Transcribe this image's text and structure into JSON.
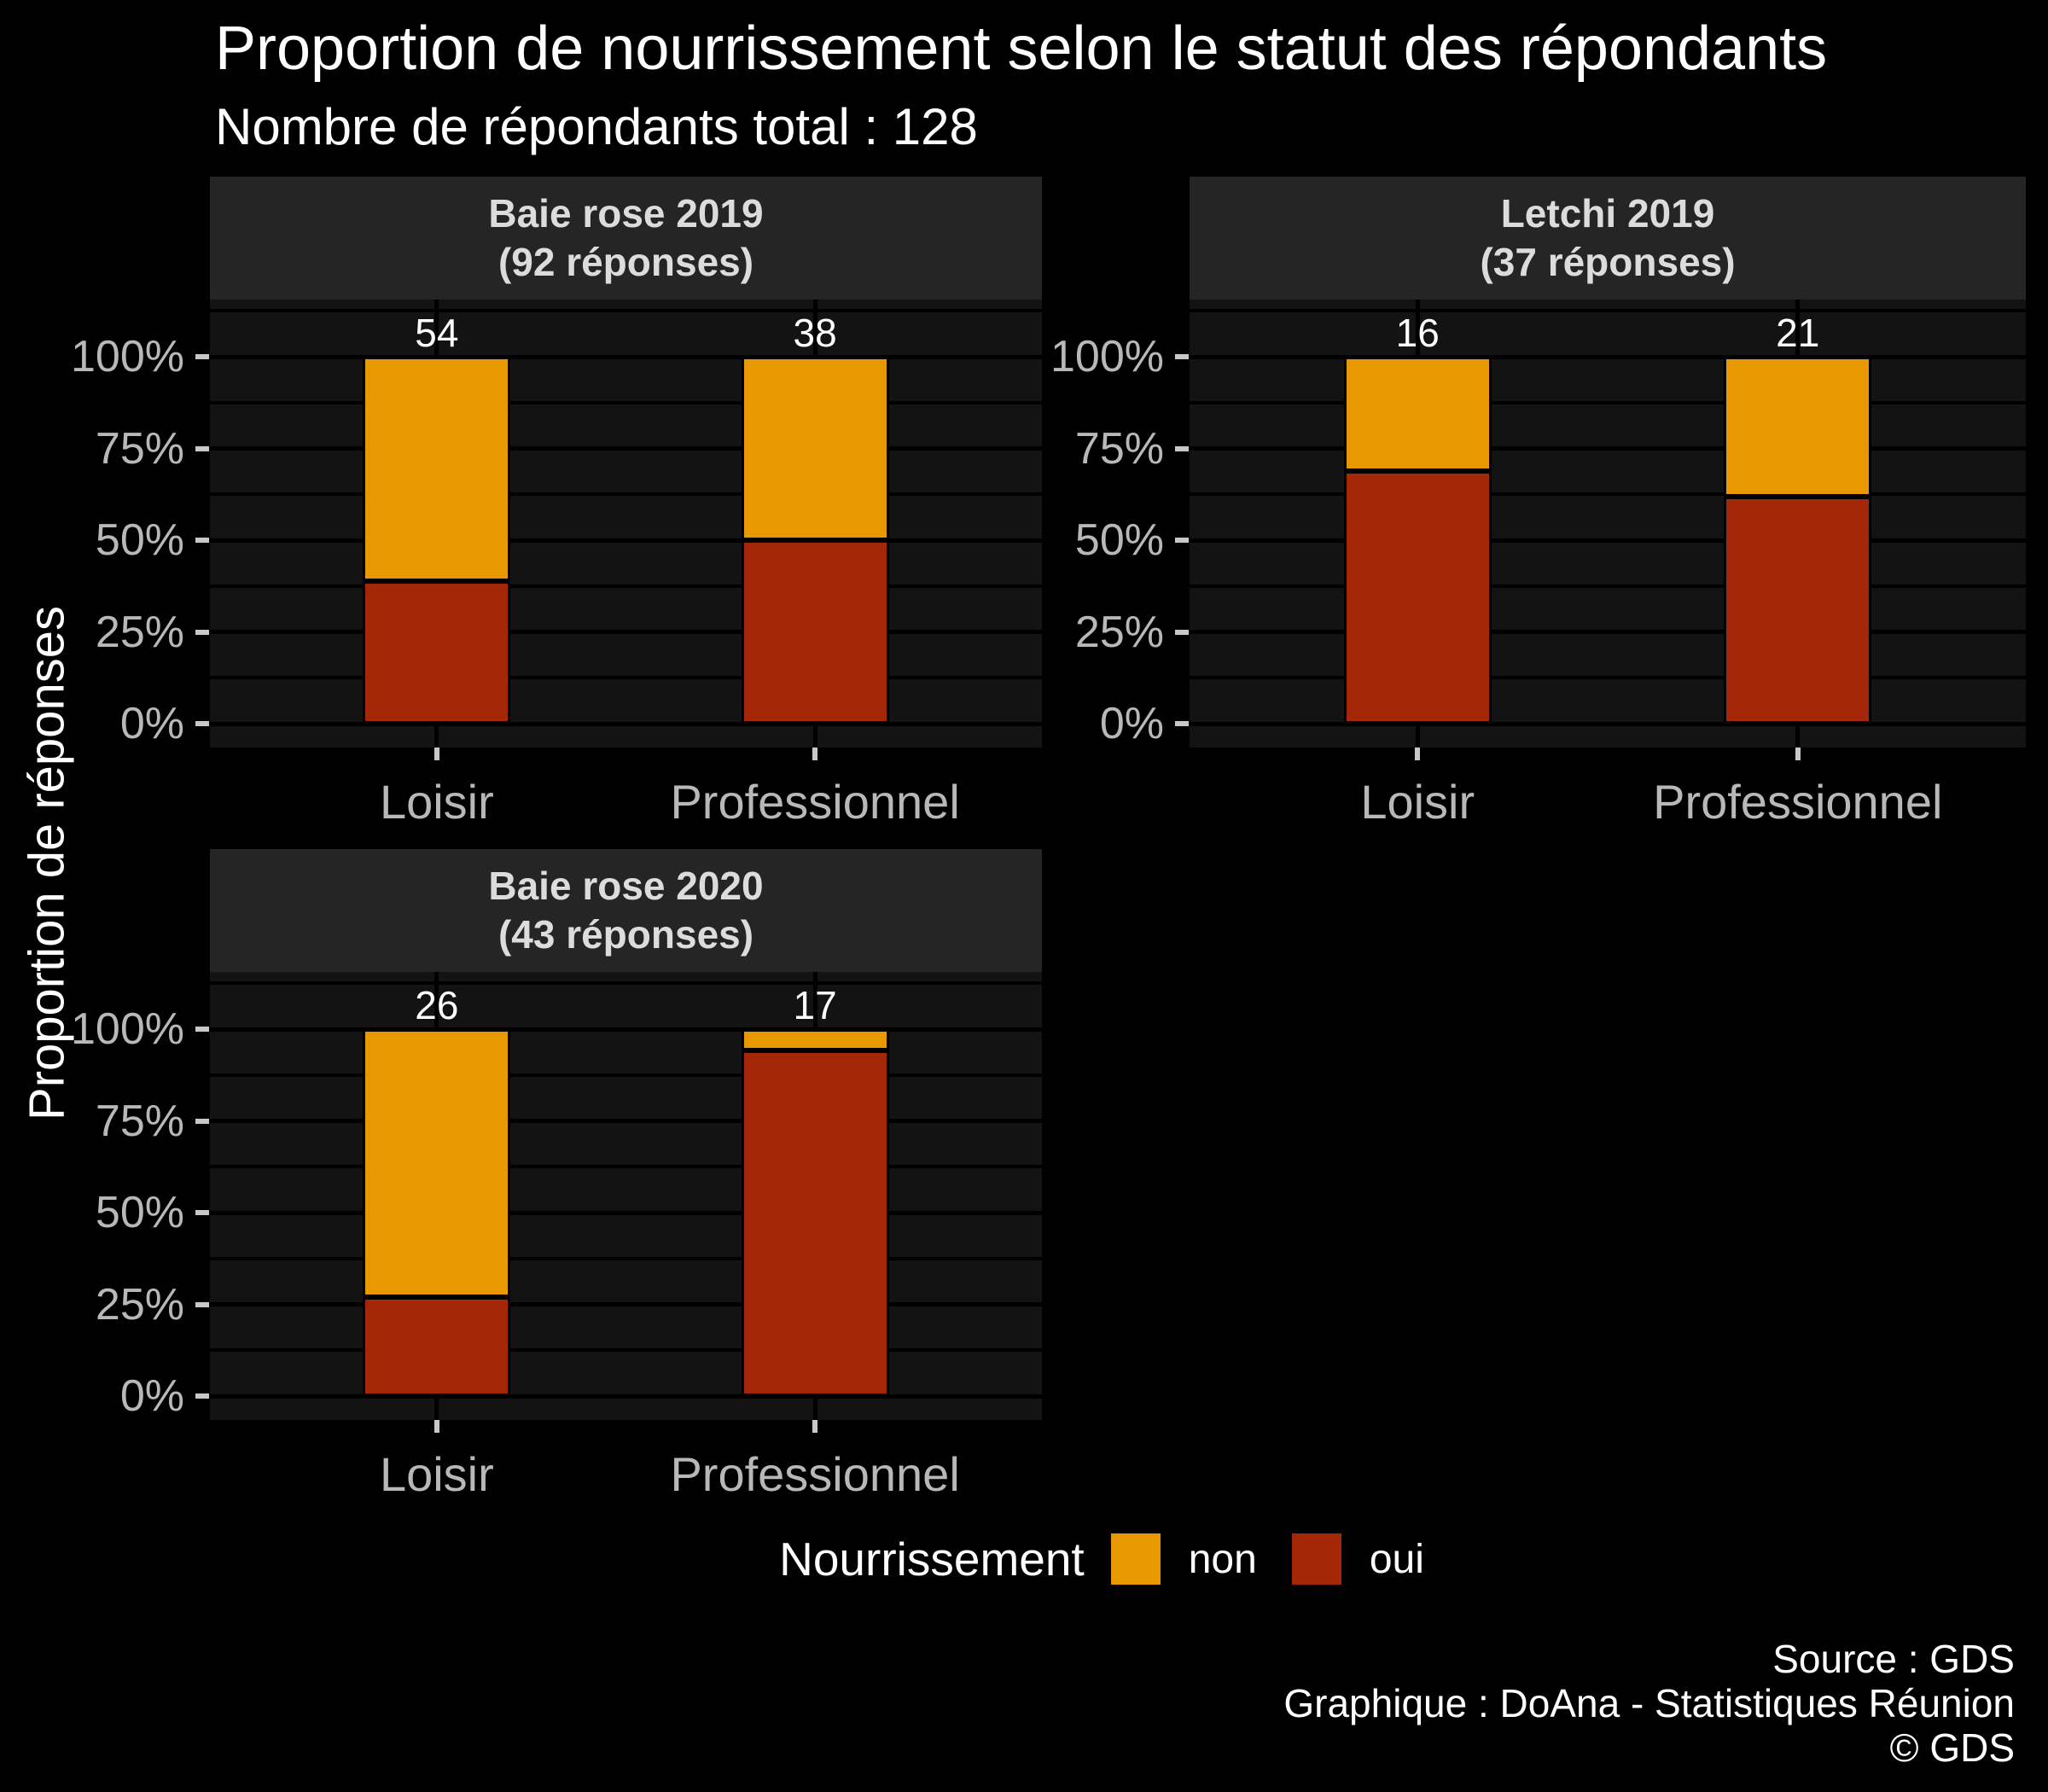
{
  "colors": {
    "background": "#000000",
    "panel_background": "#131313",
    "strip_background": "#252525",
    "gridline": "#000000",
    "non_fill": "#E89902",
    "oui_fill": "#A42807",
    "axis_text": "#b8b8b8",
    "tick_mark": "#c8c8c8",
    "strip_text": "#dcdcdc",
    "text": "#ffffff"
  },
  "chart_data": {
    "type": "bar",
    "variant": "stacked-100pct-faceted",
    "title": "Proportion de nourrissement selon le statut des répondants",
    "subtitle": "Nombre de répondants total : 128",
    "ylabel": "Proportion de réponses",
    "xlabel": "",
    "ylim": [
      0,
      100
    ],
    "grid": {
      "major_every": 25,
      "minor_every": 12.5,
      "gridlines": "on"
    },
    "categories": [
      "Loisir",
      "Professionnel"
    ],
    "y_ticks": [
      {
        "label": "100%",
        "value": 100
      },
      {
        "label": "75%",
        "value": 75
      },
      {
        "label": "50%",
        "value": 50
      },
      {
        "label": "25%",
        "value": 25
      },
      {
        "label": "0%",
        "value": 0
      }
    ],
    "legend": {
      "title": "Nourrissement",
      "position": "bottom",
      "entries": [
        {
          "label": "non",
          "color": "#E89902"
        },
        {
          "label": "oui",
          "color": "#A42807"
        }
      ]
    },
    "facets": [
      {
        "title": "Baie rose 2019",
        "subtitle": "(92 réponses)",
        "responses": 92,
        "grid": {
          "row": 0,
          "col": 0
        },
        "bars": [
          {
            "category": "Loisir",
            "total": 54,
            "count_label": "54",
            "oui_pct": 38.9,
            "non_pct": 61.1
          },
          {
            "category": "Professionnel",
            "total": 38,
            "count_label": "38",
            "oui_pct": 50.0,
            "non_pct": 50.0
          }
        ]
      },
      {
        "title": "Letchi 2019",
        "subtitle": "(37 réponses)",
        "responses": 37,
        "grid": {
          "row": 0,
          "col": 1
        },
        "bars": [
          {
            "category": "Loisir",
            "total": 16,
            "count_label": "16",
            "oui_pct": 68.8,
            "non_pct": 31.2
          },
          {
            "category": "Professionnel",
            "total": 21,
            "count_label": "21",
            "oui_pct": 61.9,
            "non_pct": 38.1
          }
        ]
      },
      {
        "title": "Baie rose 2020",
        "subtitle": "(43 réponses)",
        "responses": 43,
        "grid": {
          "row": 1,
          "col": 0
        },
        "bars": [
          {
            "category": "Loisir",
            "total": 26,
            "count_label": "26",
            "oui_pct": 26.9,
            "non_pct": 73.1
          },
          {
            "category": "Professionnel",
            "total": 17,
            "count_label": "17",
            "oui_pct": 94.1,
            "non_pct": 5.9
          }
        ]
      }
    ],
    "footer_lines": [
      "Source : GDS",
      "Graphique : DoAna - Statistiques Réunion",
      "© GDS"
    ]
  }
}
